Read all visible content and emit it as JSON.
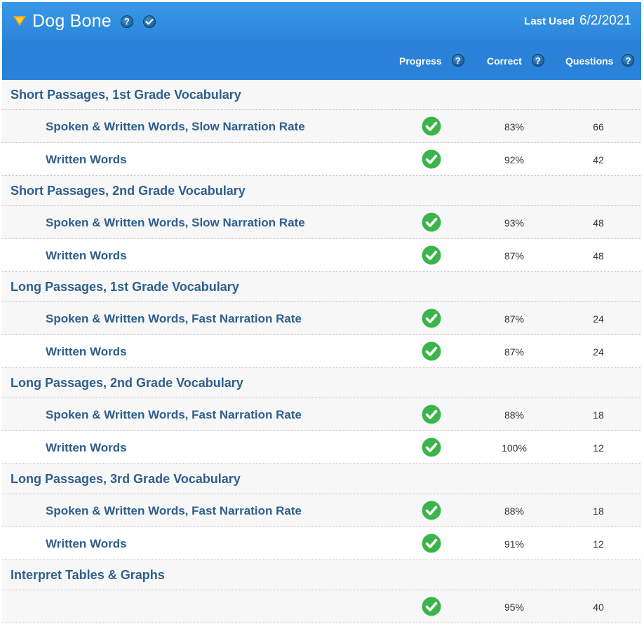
{
  "header": {
    "title": "Dog Bone",
    "last_used_label": "Last Used",
    "last_used_date": "6/2/2021",
    "help_glyph": "?"
  },
  "columns": {
    "progress": "Progress",
    "correct": "Correct",
    "questions": "Questions"
  },
  "colors": {
    "header_blue": "#3a97e6",
    "column_header_blue": "#2a82d8",
    "text_blue": "#2e5f8f",
    "check_green": "#3cb44a"
  },
  "sections": [
    {
      "title": "Short Passages, 1st Grade Vocabulary",
      "items": [
        {
          "label": "Spoken & Written Words, Slow Narration Rate",
          "correct": "83%",
          "questions": "66",
          "complete": true
        },
        {
          "label": "Written Words",
          "correct": "92%",
          "questions": "42",
          "complete": true
        }
      ]
    },
    {
      "title": "Short Passages, 2nd Grade Vocabulary",
      "items": [
        {
          "label": "Spoken & Written Words, Slow Narration Rate",
          "correct": "93%",
          "questions": "48",
          "complete": true
        },
        {
          "label": "Written Words",
          "correct": "87%",
          "questions": "48",
          "complete": true
        }
      ]
    },
    {
      "title": "Long Passages, 1st Grade Vocabulary",
      "items": [
        {
          "label": "Spoken & Written Words, Fast Narration Rate",
          "correct": "87%",
          "questions": "24",
          "complete": true
        },
        {
          "label": "Written Words",
          "correct": "87%",
          "questions": "24",
          "complete": true
        }
      ]
    },
    {
      "title": "Long Passages, 2nd Grade Vocabulary",
      "items": [
        {
          "label": "Spoken & Written Words, Fast Narration Rate",
          "correct": "88%",
          "questions": "18",
          "complete": true
        },
        {
          "label": "Written Words",
          "correct": "100%",
          "questions": "12",
          "complete": true
        }
      ]
    },
    {
      "title": "Long Passages, 3rd Grade Vocabulary",
      "items": [
        {
          "label": "Spoken & Written Words, Fast Narration Rate",
          "correct": "88%",
          "questions": "18",
          "complete": true
        },
        {
          "label": "Written Words",
          "correct": "91%",
          "questions": "12",
          "complete": true
        }
      ]
    },
    {
      "title": "Interpret Tables & Graphs",
      "items": [
        {
          "label": "",
          "correct": "95%",
          "questions": "40",
          "complete": true
        }
      ]
    }
  ]
}
